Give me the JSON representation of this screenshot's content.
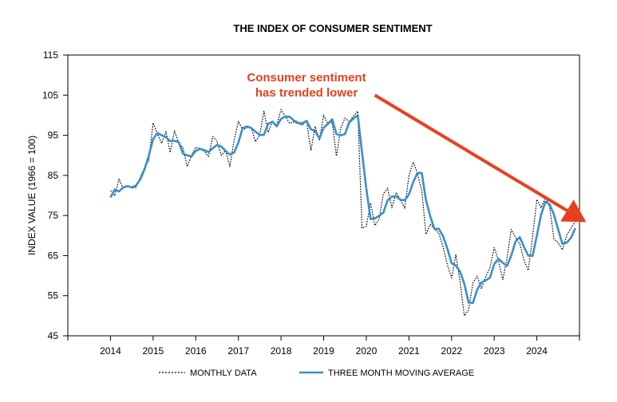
{
  "chart_data": {
    "type": "line",
    "title": "THE INDEX OF CONSUMER SENTIMENT",
    "ylabel": "INDEX VALUE (1966 = 100)",
    "xlabel": "",
    "ylim": [
      45,
      115
    ],
    "xlim": [
      2013,
      2025
    ],
    "yticks": [
      45,
      55,
      65,
      75,
      85,
      95,
      105,
      115
    ],
    "ytick_labels": [
      "45",
      "55",
      "65",
      "75",
      "85",
      "95",
      "105",
      "115"
    ],
    "xticks": [
      2014,
      2015,
      2016,
      2017,
      2018,
      2019,
      2020,
      2021,
      2022,
      2023,
      2024
    ],
    "xtick_labels": [
      "2014",
      "2015",
      "2016",
      "2017",
      "2018",
      "2019",
      "2020",
      "2021",
      "2022",
      "2023",
      "2024"
    ],
    "legend_position": "bottom",
    "grid": false,
    "annotation": {
      "text_line1": "Consumer sentiment",
      "text_line2": "has trended lower",
      "color": "#e8401c",
      "arrow_from": [
        2020.2,
        105
      ],
      "arrow_to": [
        2024.9,
        75
      ]
    },
    "series": [
      {
        "name": "MONTHLY DATA",
        "style": "dotted",
        "color": "#000000",
        "x": [
          2014.0,
          2014.1,
          2014.2,
          2014.3,
          2014.4,
          2014.5,
          2014.6,
          2014.7,
          2014.8,
          2014.9,
          2015.0,
          2015.1,
          2015.2,
          2015.3,
          2015.4,
          2015.5,
          2015.6,
          2015.7,
          2015.8,
          2015.9,
          2016.0,
          2016.1,
          2016.2,
          2016.3,
          2016.4,
          2016.5,
          2016.6,
          2016.7,
          2016.8,
          2016.9,
          2017.0,
          2017.1,
          2017.2,
          2017.3,
          2017.4,
          2017.5,
          2017.6,
          2017.7,
          2017.8,
          2017.9,
          2018.0,
          2018.1,
          2018.2,
          2018.3,
          2018.4,
          2018.5,
          2018.6,
          2018.7,
          2018.8,
          2018.9,
          2019.0,
          2019.1,
          2019.2,
          2019.3,
          2019.4,
          2019.5,
          2019.6,
          2019.7,
          2019.8,
          2019.9,
          2020.0,
          2020.1,
          2020.2,
          2020.3,
          2020.4,
          2020.5,
          2020.6,
          2020.7,
          2020.8,
          2020.9,
          2021.0,
          2021.1,
          2021.2,
          2021.3,
          2021.4,
          2021.5,
          2021.6,
          2021.7,
          2021.8,
          2021.9,
          2022.0,
          2022.1,
          2022.2,
          2022.3,
          2022.4,
          2022.5,
          2022.6,
          2022.7,
          2022.8,
          2022.9,
          2023.0,
          2023.1,
          2023.2,
          2023.3,
          2023.4,
          2023.5,
          2023.6,
          2023.7,
          2023.8,
          2023.9,
          2024.0,
          2024.1,
          2024.2,
          2024.3,
          2024.4,
          2024.5,
          2024.6,
          2024.7,
          2024.8,
          2024.9
        ],
        "values": [
          81.2,
          79.9,
          84.1,
          81.7,
          82.5,
          81.8,
          82.0,
          84.6,
          86.9,
          88.8,
          98.1,
          95.4,
          93.0,
          95.9,
          90.7,
          96.1,
          93.1,
          91.9,
          87.2,
          90.0,
          92.0,
          91.7,
          91.0,
          89.7,
          94.7,
          93.5,
          90.0,
          91.2,
          87.2,
          93.8,
          98.5,
          96.3,
          96.9,
          97.0,
          93.4,
          95.1,
          101.0,
          95.7,
          98.5,
          97.5,
          101.4,
          99.7,
          98.0,
          98.3,
          97.9,
          97.5,
          98.6,
          91.2,
          97.2,
          93.8,
          100.0,
          97.9,
          98.2,
          89.8,
          96.8,
          99.3,
          98.4,
          99.8,
          101.0,
          71.8,
          72.3,
          78.1,
          72.5,
          74.1,
          80.4,
          81.8,
          76.9,
          80.7,
          79.0,
          76.8,
          84.9,
          88.3,
          85.5,
          81.2,
          70.3,
          72.8,
          71.7,
          70.6,
          67.2,
          62.8,
          59.4,
          65.2,
          58.4,
          50.0,
          51.5,
          58.2,
          59.9,
          56.8,
          59.7,
          62.0,
          67.0,
          63.7,
          59.0,
          64.4,
          71.5,
          69.5,
          67.9,
          63.8,
          61.3,
          69.7,
          79.0,
          76.9,
          79.4,
          77.2,
          69.1,
          68.2,
          66.4,
          70.1,
          71.8,
          73.5
        ]
      },
      {
        "name": "THREE MONTH MOVING AVERAGE",
        "style": "solid",
        "color": "#3a8fc8",
        "x": [
          2014.0,
          2014.1,
          2014.2,
          2014.3,
          2014.4,
          2014.5,
          2014.6,
          2014.7,
          2014.8,
          2014.9,
          2015.0,
          2015.1,
          2015.2,
          2015.3,
          2015.4,
          2015.5,
          2015.6,
          2015.7,
          2015.8,
          2015.9,
          2016.0,
          2016.1,
          2016.2,
          2016.3,
          2016.4,
          2016.5,
          2016.6,
          2016.7,
          2016.8,
          2016.9,
          2017.0,
          2017.1,
          2017.2,
          2017.3,
          2017.4,
          2017.5,
          2017.6,
          2017.7,
          2017.8,
          2017.9,
          2018.0,
          2018.1,
          2018.2,
          2018.3,
          2018.4,
          2018.5,
          2018.6,
          2018.7,
          2018.8,
          2018.9,
          2019.0,
          2019.1,
          2019.2,
          2019.3,
          2019.4,
          2019.5,
          2019.6,
          2019.7,
          2019.8,
          2019.9,
          2020.0,
          2020.1,
          2020.2,
          2020.3,
          2020.4,
          2020.5,
          2020.6,
          2020.7,
          2020.8,
          2020.9,
          2021.0,
          2021.1,
          2021.2,
          2021.3,
          2021.4,
          2021.5,
          2021.6,
          2021.7,
          2021.8,
          2021.9,
          2022.0,
          2022.1,
          2022.2,
          2022.3,
          2022.4,
          2022.5,
          2022.6,
          2022.7,
          2022.8,
          2022.9,
          2023.0,
          2023.1,
          2023.2,
          2023.3,
          2023.4,
          2023.5,
          2023.6,
          2023.7,
          2023.8,
          2023.9,
          2024.0,
          2024.1,
          2024.2,
          2024.3,
          2024.4,
          2024.5,
          2024.6,
          2024.7,
          2024.8,
          2024.9
        ],
        "values": [
          79.5,
          81.5,
          81.0,
          82.0,
          82.3,
          82.0,
          82.5,
          84.0,
          86.5,
          90.0,
          94.0,
          95.6,
          95.0,
          94.5,
          93.5,
          93.6,
          93.3,
          90.4,
          90.0,
          89.7,
          91.1,
          91.6,
          91.3,
          90.8,
          91.8,
          92.6,
          92.2,
          91.1,
          90.2,
          90.7,
          93.2,
          96.8,
          97.2,
          96.8,
          95.9,
          95.1,
          95.1,
          97.9,
          98.4,
          97.2,
          99.1,
          99.7,
          99.6,
          98.7,
          98.1,
          98.0,
          98.6,
          96.5,
          96.0,
          94.2,
          96.9,
          97.8,
          99.0,
          95.3,
          95.0,
          95.3,
          98.2,
          99.2,
          100.0,
          90.7,
          81.7,
          74.1,
          74.3,
          74.9,
          75.7,
          78.8,
          79.7,
          79.8,
          78.9,
          78.8,
          80.2,
          83.3,
          85.6,
          85.6,
          78.8,
          74.8,
          71.6,
          71.7,
          69.8,
          66.8,
          63.1,
          62.5,
          61.0,
          57.9,
          53.3,
          53.2,
          56.5,
          58.3,
          58.8,
          59.5,
          62.9,
          64.2,
          63.2,
          62.4,
          65.0,
          68.5,
          69.6,
          67.1,
          65.0,
          64.9,
          70.0,
          75.2,
          78.4,
          77.8,
          75.2,
          71.5,
          67.9,
          68.2,
          69.4,
          71.8
        ]
      }
    ]
  }
}
